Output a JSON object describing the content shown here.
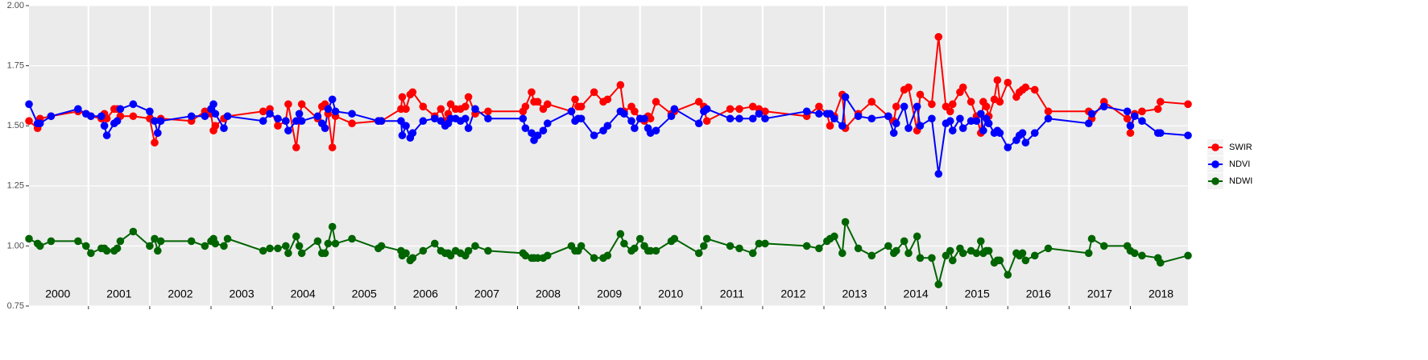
{
  "chart_data": {
    "type": "line",
    "x": [
      2000.03,
      2000.17,
      2000.21,
      2000.39,
      2000.83,
      2000.96,
      2001.04,
      2001.21,
      2001.26,
      2001.3,
      2001.42,
      2001.47,
      2001.52,
      2001.73,
      2002.0,
      2002.08,
      2002.13,
      2002.18,
      2002.68,
      2002.9,
      2003.0,
      2003.04,
      2003.07,
      2003.21,
      2003.27,
      2003.85,
      2003.96,
      2004.09,
      2004.22,
      2004.26,
      2004.39,
      2004.44,
      2004.48,
      2004.74,
      2004.81,
      2004.86,
      2004.91,
      2004.98,
      2005.03,
      2005.3,
      2005.73,
      2005.78,
      2006.1,
      2006.12,
      2006.18,
      2006.25,
      2006.29,
      2006.46,
      2006.65,
      2006.75,
      2006.82,
      2006.87,
      2006.91,
      2006.99,
      2007.07,
      2007.15,
      2007.2,
      2007.31,
      2007.52,
      2008.09,
      2008.13,
      2008.23,
      2008.27,
      2008.33,
      2008.42,
      2008.49,
      2008.88,
      2008.94,
      2008.99,
      2009.04,
      2009.25,
      2009.4,
      2009.47,
      2009.68,
      2009.74,
      2009.86,
      2009.91,
      2010.0,
      2010.07,
      2010.13,
      2010.17,
      2010.26,
      2010.51,
      2010.56,
      2010.96,
      2011.04,
      2011.09,
      2011.47,
      2011.62,
      2011.84,
      2011.94,
      2012.04,
      2012.72,
      2012.92,
      2013.05,
      2013.1,
      2013.17,
      2013.3,
      2013.35,
      2013.56,
      2013.78,
      2014.05,
      2014.14,
      2014.18,
      2014.31,
      2014.38,
      2014.52,
      2014.57,
      2014.76,
      2014.87,
      2014.99,
      2015.06,
      2015.1,
      2015.22,
      2015.27,
      2015.4,
      2015.49,
      2015.56,
      2015.6,
      2015.65,
      2015.69,
      2015.78,
      2015.83,
      2015.87,
      2016.0,
      2016.14,
      2016.19,
      2016.24,
      2016.29,
      2016.44,
      2016.66,
      2017.32,
      2017.37,
      2017.57,
      2017.95,
      2018.0,
      2018.07,
      2018.19,
      2018.45,
      2018.49,
      2018.94
    ],
    "series": [
      {
        "name": "SWIR",
        "color": "#ff0000",
        "values": [
          1.52,
          1.49,
          1.53,
          1.54,
          1.56,
          1.55,
          1.54,
          1.53,
          1.55,
          1.53,
          1.57,
          1.57,
          1.54,
          1.54,
          1.53,
          1.43,
          1.47,
          1.53,
          1.52,
          1.56,
          1.55,
          1.48,
          1.5,
          1.53,
          1.54,
          1.56,
          1.57,
          1.5,
          1.52,
          1.59,
          1.41,
          1.52,
          1.59,
          1.53,
          1.58,
          1.59,
          1.55,
          1.41,
          1.54,
          1.51,
          1.52,
          1.52,
          1.57,
          1.62,
          1.57,
          1.63,
          1.64,
          1.58,
          1.54,
          1.57,
          1.52,
          1.55,
          1.59,
          1.57,
          1.57,
          1.58,
          1.62,
          1.55,
          1.56,
          1.56,
          1.58,
          1.64,
          1.6,
          1.6,
          1.57,
          1.59,
          1.56,
          1.61,
          1.58,
          1.58,
          1.64,
          1.6,
          1.61,
          1.67,
          1.56,
          1.58,
          1.56,
          1.53,
          1.52,
          1.54,
          1.53,
          1.6,
          1.55,
          1.56,
          1.6,
          1.58,
          1.52,
          1.57,
          1.57,
          1.58,
          1.57,
          1.56,
          1.54,
          1.58,
          1.55,
          1.5,
          1.54,
          1.63,
          1.49,
          1.55,
          1.6,
          1.54,
          1.52,
          1.58,
          1.65,
          1.66,
          1.48,
          1.63,
          1.59,
          1.87,
          1.58,
          1.56,
          1.59,
          1.64,
          1.66,
          1.6,
          1.54,
          1.47,
          1.6,
          1.58,
          1.54,
          1.61,
          1.69,
          1.6,
          1.68,
          1.62,
          1.64,
          1.65,
          1.66,
          1.65,
          1.56,
          1.56,
          1.53,
          1.6,
          1.53,
          1.47,
          1.55,
          1.56,
          1.57,
          1.6,
          1.59
        ]
      },
      {
        "name": "NDVI",
        "color": "#0000ff",
        "values": [
          1.59,
          1.51,
          1.51,
          1.54,
          1.57,
          1.55,
          1.54,
          1.54,
          1.5,
          1.46,
          1.51,
          1.52,
          1.57,
          1.59,
          1.56,
          1.52,
          1.47,
          1.52,
          1.54,
          1.54,
          1.57,
          1.59,
          1.55,
          1.49,
          1.54,
          1.52,
          1.55,
          1.53,
          1.52,
          1.48,
          1.52,
          1.55,
          1.52,
          1.54,
          1.51,
          1.49,
          1.57,
          1.61,
          1.56,
          1.55,
          1.52,
          1.52,
          1.52,
          1.46,
          1.5,
          1.45,
          1.47,
          1.52,
          1.53,
          1.52,
          1.5,
          1.51,
          1.53,
          1.53,
          1.52,
          1.53,
          1.49,
          1.57,
          1.53,
          1.53,
          1.49,
          1.47,
          1.44,
          1.46,
          1.48,
          1.51,
          1.56,
          1.52,
          1.53,
          1.53,
          1.46,
          1.48,
          1.5,
          1.56,
          1.55,
          1.52,
          1.49,
          1.53,
          1.53,
          1.49,
          1.47,
          1.48,
          1.54,
          1.57,
          1.51,
          1.56,
          1.57,
          1.53,
          1.53,
          1.53,
          1.55,
          1.53,
          1.56,
          1.55,
          1.55,
          1.55,
          1.53,
          1.5,
          1.62,
          1.54,
          1.53,
          1.54,
          1.47,
          1.51,
          1.58,
          1.49,
          1.58,
          1.5,
          1.53,
          1.3,
          1.51,
          1.52,
          1.48,
          1.53,
          1.49,
          1.52,
          1.52,
          1.55,
          1.48,
          1.53,
          1.51,
          1.47,
          1.48,
          1.47,
          1.41,
          1.44,
          1.46,
          1.47,
          1.43,
          1.47,
          1.53,
          1.51,
          1.55,
          1.58,
          1.56,
          1.5,
          1.54,
          1.52,
          1.47,
          1.47,
          1.46
        ]
      },
      {
        "name": "NDWI",
        "color": "#006400",
        "values": [
          1.03,
          1.01,
          1.0,
          1.02,
          1.02,
          1.0,
          0.97,
          0.99,
          0.99,
          0.98,
          0.98,
          0.99,
          1.02,
          1.06,
          1.0,
          1.03,
          0.98,
          1.02,
          1.02,
          1.0,
          1.02,
          1.03,
          1.01,
          1.0,
          1.03,
          0.98,
          0.99,
          0.99,
          1.0,
          0.97,
          1.04,
          1.0,
          0.97,
          1.02,
          0.97,
          0.97,
          1.01,
          1.08,
          1.01,
          1.03,
          0.99,
          1.0,
          0.98,
          0.96,
          0.97,
          0.94,
          0.95,
          0.98,
          1.01,
          0.98,
          0.97,
          0.97,
          0.96,
          0.98,
          0.97,
          0.96,
          0.98,
          1.0,
          0.98,
          0.97,
          0.96,
          0.95,
          0.95,
          0.95,
          0.95,
          0.96,
          1.0,
          0.98,
          0.98,
          1.0,
          0.95,
          0.95,
          0.96,
          1.05,
          1.01,
          0.98,
          0.99,
          1.03,
          1.0,
          0.98,
          0.98,
          0.98,
          1.02,
          1.03,
          0.97,
          1.0,
          1.03,
          1.0,
          0.99,
          0.97,
          1.01,
          1.01,
          1.0,
          0.99,
          1.02,
          1.03,
          1.04,
          0.97,
          1.1,
          0.99,
          0.96,
          1.0,
          0.97,
          0.98,
          1.02,
          0.97,
          1.04,
          0.95,
          0.95,
          0.84,
          0.96,
          0.98,
          0.94,
          0.99,
          0.97,
          0.98,
          0.97,
          1.02,
          0.97,
          0.98,
          0.98,
          0.93,
          0.94,
          0.94,
          0.88,
          0.97,
          0.96,
          0.97,
          0.94,
          0.96,
          0.99,
          0.97,
          1.03,
          1.0,
          1.0,
          0.98,
          0.97,
          0.96,
          0.95,
          0.93,
          0.96
        ]
      }
    ],
    "xlim": [
      2000.03,
      2018.94
    ],
    "xticks": [
      2001,
      2002,
      2003,
      2004,
      2005,
      2006,
      2007,
      2008,
      2009,
      2010,
      2011,
      2012,
      2013,
      2014,
      2015,
      2016,
      2017,
      2018
    ],
    "ylim": [
      0.75,
      2.0
    ],
    "yticks": [
      {
        "value": 0.75,
        "label": "0.75"
      },
      {
        "value": 1.0,
        "label": "1.00"
      },
      {
        "value": 1.25,
        "label": "1.25"
      },
      {
        "value": 1.5,
        "label": "1.50"
      },
      {
        "value": 1.75,
        "label": "1.75"
      },
      {
        "value": 2.0,
        "label": "2.00"
      }
    ],
    "grid": true,
    "legend": "right",
    "annotations": [
      {
        "x": 2000.5,
        "text": "2000"
      },
      {
        "x": 2001.5,
        "text": "2001"
      },
      {
        "x": 2002.5,
        "text": "2002"
      },
      {
        "x": 2003.5,
        "text": "2003"
      },
      {
        "x": 2004.5,
        "text": "2004"
      },
      {
        "x": 2005.5,
        "text": "2005"
      },
      {
        "x": 2006.5,
        "text": "2006"
      },
      {
        "x": 2007.5,
        "text": "2007"
      },
      {
        "x": 2008.5,
        "text": "2008"
      },
      {
        "x": 2009.5,
        "text": "2009"
      },
      {
        "x": 2010.5,
        "text": "2010"
      },
      {
        "x": 2011.5,
        "text": "2011"
      },
      {
        "x": 2012.5,
        "text": "2012"
      },
      {
        "x": 2013.5,
        "text": "2013"
      },
      {
        "x": 2014.5,
        "text": "2014"
      },
      {
        "x": 2015.5,
        "text": "2015"
      },
      {
        "x": 2016.5,
        "text": "2016"
      },
      {
        "x": 2017.5,
        "text": "2017"
      },
      {
        "x": 2018.5,
        "text": "2018"
      }
    ]
  }
}
